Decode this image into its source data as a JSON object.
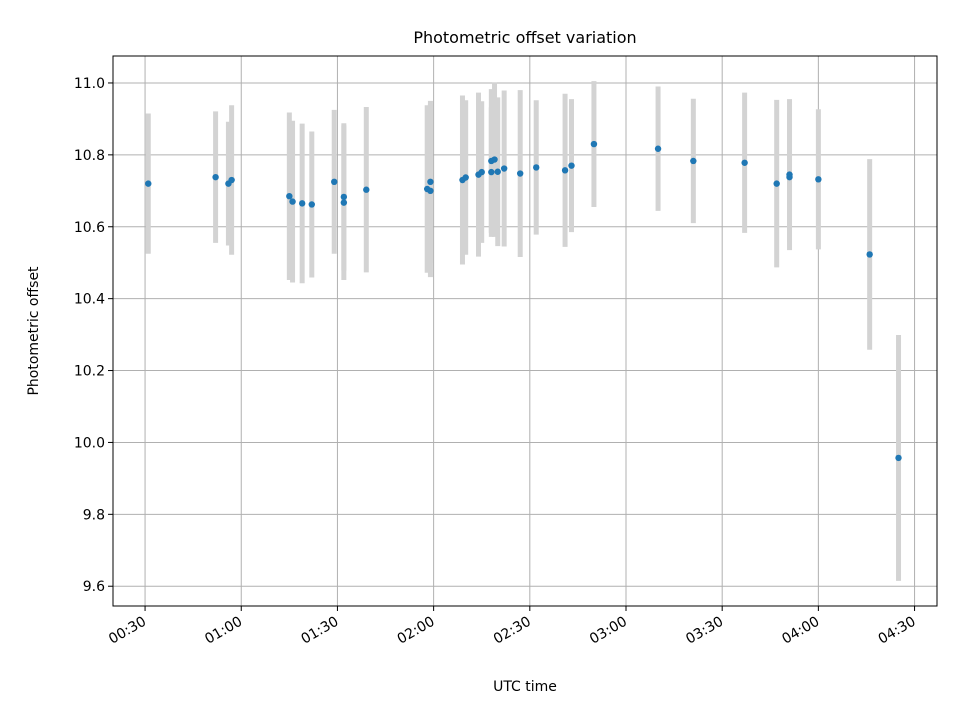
{
  "chart_data": {
    "type": "scatter",
    "title": "Photometric offset variation",
    "xlabel": "UTC time",
    "ylabel": "Photometric offset",
    "x_tick_labels": [
      "00:30",
      "01:00",
      "01:30",
      "02:00",
      "02:30",
      "03:00",
      "03:30",
      "04:00",
      "04:30"
    ],
    "y_tick_labels": [
      "9.6",
      "9.8",
      "10.0",
      "10.2",
      "10.4",
      "10.6",
      "10.8",
      "11.0"
    ],
    "ylim": [
      9.545,
      11.075
    ],
    "xlim_minutes_utc": [
      20,
      277
    ],
    "grid": true,
    "point_color": "#1f77b4",
    "errorbar_color": "#d3d3d3",
    "points": [
      {
        "t": "00:31",
        "y": 10.72,
        "err": 0.195
      },
      {
        "t": "00:52",
        "y": 10.738,
        "err": 0.183
      },
      {
        "t": "00:56",
        "y": 10.72,
        "err": 0.172
      },
      {
        "t": "00:57",
        "y": 10.73,
        "err": 0.208
      },
      {
        "t": "01:15",
        "y": 10.685,
        "err": 0.233
      },
      {
        "t": "01:16",
        "y": 10.67,
        "err": 0.225
      },
      {
        "t": "01:19",
        "y": 10.665,
        "err": 0.222
      },
      {
        "t": "01:22",
        "y": 10.662,
        "err": 0.203
      },
      {
        "t": "01:29",
        "y": 10.725,
        "err": 0.2
      },
      {
        "t": "01:32",
        "y": 10.683,
        "err": 0.205
      },
      {
        "t": "01:32",
        "y": 10.667,
        "err": 0.215
      },
      {
        "t": "01:39",
        "y": 10.703,
        "err": 0.23
      },
      {
        "t": "01:58",
        "y": 10.705,
        "err": 0.233
      },
      {
        "t": "01:59",
        "y": 10.725,
        "err": 0.225
      },
      {
        "t": "01:59",
        "y": 10.7,
        "err": 0.24
      },
      {
        "t": "02:09",
        "y": 10.73,
        "err": 0.235
      },
      {
        "t": "02:10",
        "y": 10.737,
        "err": 0.215
      },
      {
        "t": "02:14",
        "y": 10.745,
        "err": 0.228
      },
      {
        "t": "02:15",
        "y": 10.752,
        "err": 0.197
      },
      {
        "t": "02:18",
        "y": 10.752,
        "err": 0.18
      },
      {
        "t": "02:18",
        "y": 10.783,
        "err": 0.2
      },
      {
        "t": "02:19",
        "y": 10.787,
        "err": 0.215
      },
      {
        "t": "02:20",
        "y": 10.753,
        "err": 0.207
      },
      {
        "t": "02:22",
        "y": 10.762,
        "err": 0.217
      },
      {
        "t": "02:27",
        "y": 10.748,
        "err": 0.232
      },
      {
        "t": "02:32",
        "y": 10.765,
        "err": 0.187
      },
      {
        "t": "02:41",
        "y": 10.757,
        "err": 0.213
      },
      {
        "t": "02:43",
        "y": 10.77,
        "err": 0.185
      },
      {
        "t": "02:50",
        "y": 10.83,
        "err": 0.175
      },
      {
        "t": "03:10",
        "y": 10.817,
        "err": 0.173
      },
      {
        "t": "03:21",
        "y": 10.783,
        "err": 0.173
      },
      {
        "t": "03:37",
        "y": 10.778,
        "err": 0.195
      },
      {
        "t": "03:47",
        "y": 10.72,
        "err": 0.233
      },
      {
        "t": "03:51",
        "y": 10.745,
        "err": 0.21
      },
      {
        "t": "03:51",
        "y": 10.738,
        "err": 0.178
      },
      {
        "t": "04:00",
        "y": 10.732,
        "err": 0.195
      },
      {
        "t": "04:16",
        "y": 10.523,
        "err": 0.265
      },
      {
        "t": "04:25",
        "y": 9.957,
        "err": 0.342
      }
    ]
  }
}
